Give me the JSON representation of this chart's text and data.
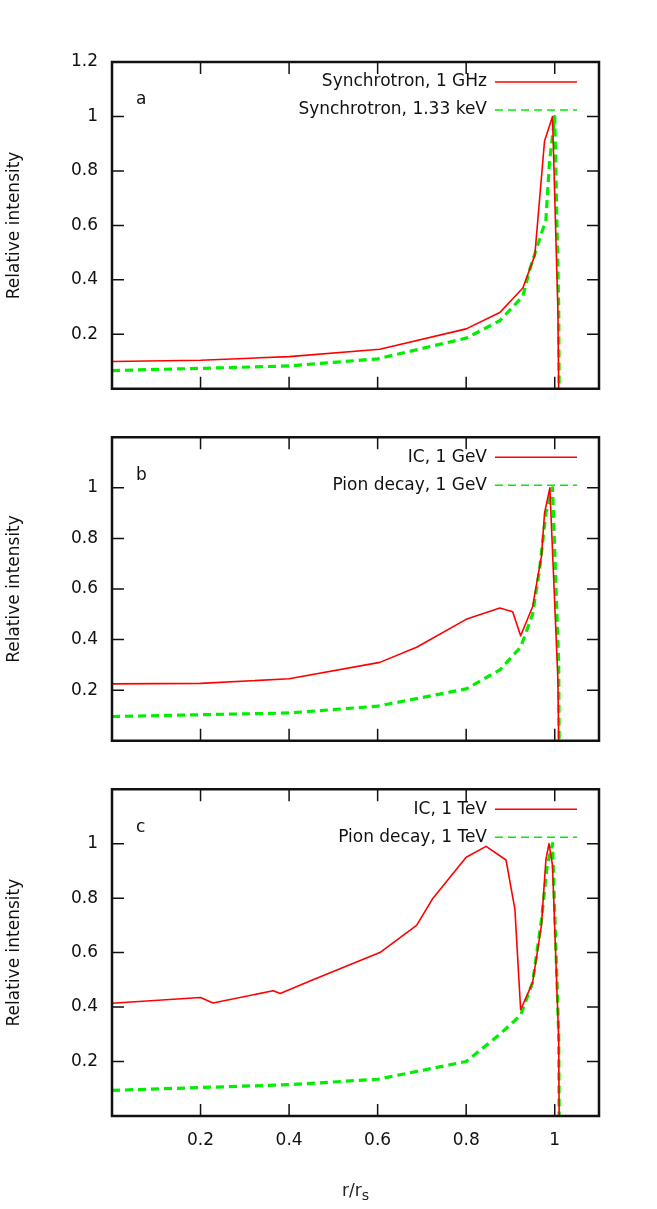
{
  "chart_data": [
    {
      "type": "line",
      "ylabel": "Relative intensity",
      "annotations": [
        "a"
      ],
      "xlim": [
        0,
        1.1
      ],
      "ylim": [
        0,
        1.2
      ],
      "xticks": [
        0.2,
        0.4,
        0.6,
        0.8,
        1
      ],
      "yticks": [
        0.2,
        0.4,
        0.6,
        0.8,
        1,
        1.2
      ],
      "tick_labels": "y",
      "legend": "top right",
      "marker": "none",
      "series": [
        {
          "name": "Synchrotron, 1 GHz",
          "color": "#ff0000",
          "line_style": "solid",
          "x": [
            0,
            0.2,
            0.4,
            0.605,
            0.8,
            0.876,
            0.928,
            0.955,
            0.977,
            0.995,
            1.007,
            1.009
          ],
          "values": [
            0.1,
            0.105,
            0.118,
            0.145,
            0.22,
            0.28,
            0.37,
            0.49,
            0.91,
            1.0,
            0.3,
            0
          ]
        },
        {
          "name": "Synchrotron, 1.33 keV",
          "color": "#00ee00",
          "line_style": "dashed",
          "x": [
            0,
            0.2,
            0.4,
            0.6,
            0.8,
            0.876,
            0.928,
            0.944,
            0.98,
            0.988,
            1.0,
            1.009,
            1.01
          ],
          "values": [
            0.067,
            0.075,
            0.084,
            0.11,
            0.186,
            0.25,
            0.34,
            0.44,
            0.62,
            0.83,
            1.0,
            0.3,
            0
          ]
        }
      ]
    },
    {
      "type": "line",
      "ylabel": "Relative intensity",
      "annotations": [
        "b"
      ],
      "xlim": [
        0,
        1.1
      ],
      "ylim": [
        0,
        1.2
      ],
      "xticks": [
        0.2,
        0.4,
        0.6,
        0.8,
        1
      ],
      "yticks": [
        0.2,
        0.4,
        0.6,
        0.8,
        1
      ],
      "tick_labels": "y",
      "legend": "top right",
      "marker": "none",
      "series": [
        {
          "name": "IC, 1 GeV",
          "color": "#ff0000",
          "line_style": "solid",
          "x": [
            0,
            0.2,
            0.4,
            0.605,
            0.688,
            0.8,
            0.876,
            0.905,
            0.923,
            0.95,
            0.97,
            0.977,
            0.989,
            1.007,
            1.009
          ],
          "values": [
            0.225,
            0.227,
            0.245,
            0.31,
            0.37,
            0.48,
            0.525,
            0.51,
            0.415,
            0.53,
            0.73,
            0.9,
            1.0,
            0.25,
            0
          ]
        },
        {
          "name": "Pion decay, 1 GeV",
          "color": "#00ee00",
          "line_style": "dashed",
          "x": [
            0,
            0.4,
            0.6,
            0.8,
            0.876,
            0.923,
            0.95,
            0.966,
            0.98,
            0.995,
            1.009,
            1.01
          ],
          "values": [
            0.096,
            0.11,
            0.137,
            0.205,
            0.28,
            0.37,
            0.5,
            0.68,
            0.9,
            1.0,
            0.3,
            0
          ]
        }
      ]
    },
    {
      "type": "line",
      "ylabel": "Relative intensity",
      "xlabel": "r/r$_{s}$",
      "annotations": [
        "c"
      ],
      "xlim": [
        0,
        1.1
      ],
      "ylim": [
        0,
        1.2
      ],
      "xticks": [
        0.2,
        0.4,
        0.6,
        0.8,
        1
      ],
      "yticks": [
        0.2,
        0.4,
        0.6,
        0.8,
        1
      ],
      "legend": "top right",
      "marker": "none",
      "series": [
        {
          "name": "IC, 1 TeV",
          "color": "#ff0000",
          "line_style": "solid",
          "x": [
            0,
            0.2,
            0.228,
            0.364,
            0.38,
            0.454,
            0.605,
            0.688,
            0.725,
            0.8,
            0.845,
            0.89,
            0.91,
            0.923,
            0.95,
            0.97,
            0.98,
            0.987,
            0.995,
            1.009,
            1.01
          ],
          "values": [
            0.414,
            0.435,
            0.415,
            0.46,
            0.45,
            0.5,
            0.6,
            0.7,
            0.8,
            0.95,
            0.99,
            0.94,
            0.76,
            0.39,
            0.49,
            0.7,
            0.94,
            1.0,
            0.92,
            0.28,
            0
          ]
        },
        {
          "name": "Pion decay, 1 TeV",
          "color": "#00ee00",
          "line_style": "dashed",
          "x": [
            0,
            0.4,
            0.6,
            0.8,
            0.876,
            0.923,
            0.95,
            0.97,
            0.983,
            0.995,
            1.009,
            1.01
          ],
          "values": [
            0.094,
            0.115,
            0.135,
            0.2,
            0.3,
            0.37,
            0.49,
            0.72,
            0.92,
            1.0,
            0.3,
            0
          ]
        }
      ]
    }
  ]
}
